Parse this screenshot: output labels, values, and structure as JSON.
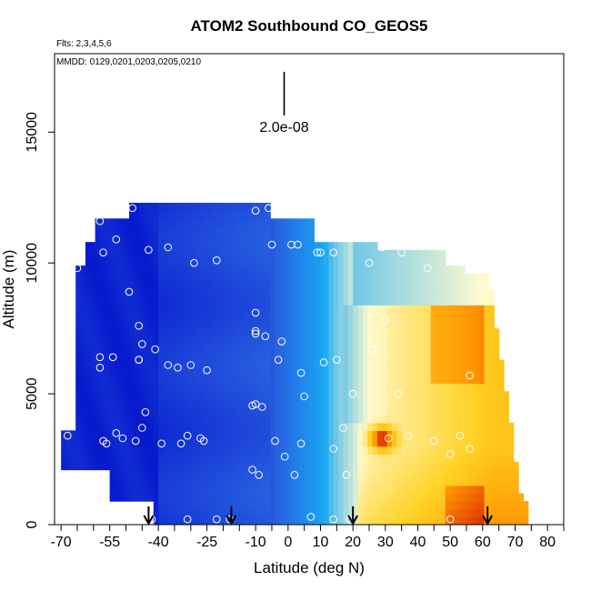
{
  "chart_data": {
    "type": "heatmap",
    "title": "ATOM2 Southbound CO_GEOS5",
    "flights_note": "Flts: 2,3,4,5,6",
    "dates_note": "MMDD: 0129,0201,0203,0205,0210",
    "scale_label": "2.0e-08",
    "xlabel": "Latitude (deg N)",
    "ylabel": "Altitude (m)",
    "xlim": [
      -72,
      85
    ],
    "ylim": [
      0,
      18000
    ],
    "x_ticks": [
      -70,
      -55,
      -40,
      -25,
      -10,
      0,
      10,
      20,
      30,
      40,
      50,
      60,
      70,
      80
    ],
    "x_tick_labels": [
      "-70",
      "-55",
      "-40",
      "-25",
      "-10",
      "0",
      "10",
      "20",
      "30",
      "40",
      "50",
      "60",
      "70",
      "80"
    ],
    "y_ticks": [
      0,
      5000,
      10000,
      15000
    ],
    "y_tick_labels": [
      "0",
      "5000",
      "10000",
      "15000"
    ],
    "colors": {
      "low": "#0008c8",
      "mid_low": "#2860e0",
      "mid": "#18a8f4",
      "neutral": "#fffad0",
      "mid_high": "#ffd224",
      "high": "#ff9600",
      "max": "#cc0000"
    },
    "observation_points": [
      [
        -51,
        12300
      ],
      [
        -58,
        11600
      ],
      [
        -48,
        12100
      ],
      [
        -10,
        12000
      ],
      [
        -6,
        12100
      ],
      [
        -53,
        10900
      ],
      [
        -43,
        10500
      ],
      [
        -37,
        10600
      ],
      [
        -29,
        10000
      ],
      [
        -22,
        10100
      ],
      [
        -65,
        9800
      ],
      [
        -57,
        10400
      ],
      [
        -5,
        10700
      ],
      [
        1,
        10700
      ],
      [
        3,
        10700
      ],
      [
        9,
        10400
      ],
      [
        10,
        10400
      ],
      [
        14,
        10400
      ],
      [
        25,
        10000
      ],
      [
        29,
        10600
      ],
      [
        35,
        10400
      ],
      [
        43,
        9800
      ],
      [
        51,
        10300
      ],
      [
        -49,
        8900
      ],
      [
        -10,
        8100
      ],
      [
        -46,
        7600
      ],
      [
        -10,
        7400
      ],
      [
        -10,
        7300
      ],
      [
        -7,
        7200
      ],
      [
        -45,
        6900
      ],
      [
        -41,
        6700
      ],
      [
        -2,
        7000
      ],
      [
        -54,
        6400
      ],
      [
        -58,
        6400
      ],
      [
        -46,
        6300
      ],
      [
        -46,
        6300
      ],
      [
        -30,
        6100
      ],
      [
        -37,
        6100
      ],
      [
        -34,
        6000
      ],
      [
        -25,
        5900
      ],
      [
        -58,
        6000
      ],
      [
        -67,
        5700
      ],
      [
        4,
        5800
      ],
      [
        11,
        6200
      ],
      [
        15,
        6300
      ],
      [
        26,
        6700
      ],
      [
        30,
        7800
      ],
      [
        56,
        5700
      ],
      [
        -3,
        6300
      ],
      [
        -10,
        4600
      ],
      [
        -11,
        4550
      ],
      [
        -8,
        4500
      ],
      [
        5,
        4900
      ],
      [
        20,
        5000
      ],
      [
        34,
        5000
      ],
      [
        -44,
        4300
      ],
      [
        -45,
        3700
      ],
      [
        -53,
        3500
      ],
      [
        -68,
        3400
      ],
      [
        -51,
        3300
      ],
      [
        -56,
        3100
      ],
      [
        -57,
        3200
      ],
      [
        -47,
        3200
      ],
      [
        -39,
        3100
      ],
      [
        -31,
        3400
      ],
      [
        -33,
        3100
      ],
      [
        -27,
        3300
      ],
      [
        -26,
        3200
      ],
      [
        17,
        3700
      ],
      [
        31,
        3300
      ],
      [
        37,
        3400
      ],
      [
        45,
        3200
      ],
      [
        53,
        3400
      ],
      [
        -4,
        3200
      ],
      [
        -1,
        2600
      ],
      [
        4,
        3100
      ],
      [
        14,
        2900
      ],
      [
        50,
        2700
      ],
      [
        56,
        2900
      ],
      [
        -11,
        2100
      ],
      [
        -9,
        1900
      ],
      [
        2,
        1900
      ],
      [
        18,
        1900
      ],
      [
        -42,
        200
      ],
      [
        -31,
        200
      ],
      [
        -22,
        200
      ],
      [
        -18,
        200
      ],
      [
        7,
        300
      ],
      [
        14,
        200
      ],
      [
        19,
        200
      ],
      [
        50,
        200
      ]
    ],
    "profile_arrows": [
      -43,
      -17.5,
      20,
      61.5
    ]
  }
}
